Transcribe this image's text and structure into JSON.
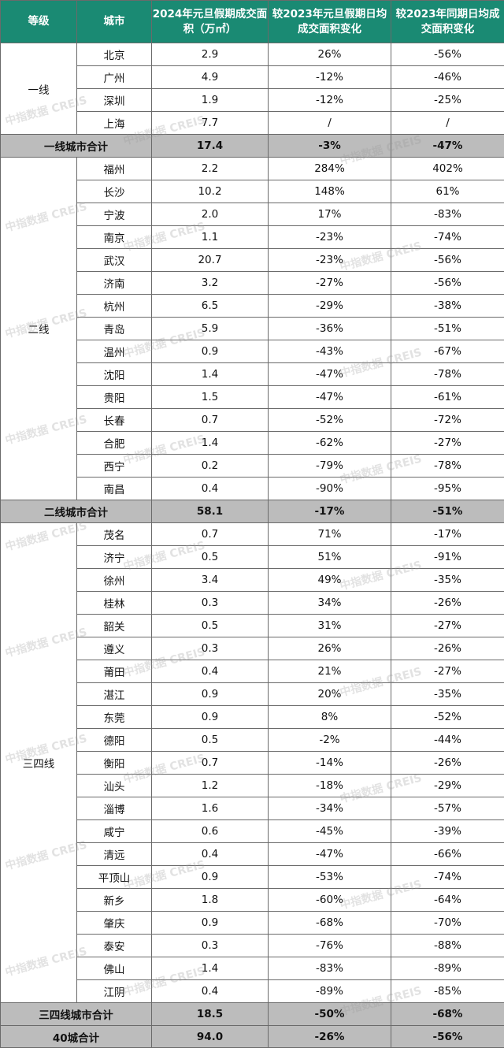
{
  "headers": [
    "等级",
    "城市",
    "2024年元旦假期成交面积（万㎡）",
    "较2023年元旦假期日均成交面积变化",
    "较2023年同期日均成交面积变化"
  ],
  "watermark": "中指数据 CREIS",
  "groups": [
    {
      "tier": "一线",
      "rows": [
        [
          "北京",
          "2.9",
          "26%",
          "-56%"
        ],
        [
          "广州",
          "4.9",
          "-12%",
          "-46%"
        ],
        [
          "深圳",
          "1.9",
          "-12%",
          "-25%"
        ],
        [
          "上海",
          "7.7",
          "/",
          "/"
        ]
      ],
      "subtotal": [
        "一线城市合计",
        "17.4",
        "-3%",
        "-47%"
      ]
    },
    {
      "tier": "二线",
      "rows": [
        [
          "福州",
          "2.2",
          "284%",
          "402%"
        ],
        [
          "长沙",
          "10.2",
          "148%",
          "61%"
        ],
        [
          "宁波",
          "2.0",
          "17%",
          "-83%"
        ],
        [
          "南京",
          "1.1",
          "-23%",
          "-74%"
        ],
        [
          "武汉",
          "20.7",
          "-23%",
          "-56%"
        ],
        [
          "济南",
          "3.2",
          "-27%",
          "-56%"
        ],
        [
          "杭州",
          "6.5",
          "-29%",
          "-38%"
        ],
        [
          "青岛",
          "5.9",
          "-36%",
          "-51%"
        ],
        [
          "温州",
          "0.9",
          "-43%",
          "-67%"
        ],
        [
          "沈阳",
          "1.4",
          "-47%",
          "-78%"
        ],
        [
          "贵阳",
          "1.5",
          "-47%",
          "-61%"
        ],
        [
          "长春",
          "0.7",
          "-52%",
          "-72%"
        ],
        [
          "合肥",
          "1.4",
          "-62%",
          "-27%"
        ],
        [
          "西宁",
          "0.2",
          "-79%",
          "-78%"
        ],
        [
          "南昌",
          "0.4",
          "-90%",
          "-95%"
        ]
      ],
      "subtotal": [
        "二线城市合计",
        "58.1",
        "-17%",
        "-51%"
      ]
    },
    {
      "tier": "三四线",
      "rows": [
        [
          "茂名",
          "0.7",
          "71%",
          "-17%"
        ],
        [
          "济宁",
          "0.5",
          "51%",
          "-91%"
        ],
        [
          "徐州",
          "3.4",
          "49%",
          "-35%"
        ],
        [
          "桂林",
          "0.3",
          "34%",
          "-26%"
        ],
        [
          "韶关",
          "0.5",
          "31%",
          "-27%"
        ],
        [
          "遵义",
          "0.3",
          "26%",
          "-26%"
        ],
        [
          "莆田",
          "0.4",
          "21%",
          "-27%"
        ],
        [
          "湛江",
          "0.9",
          "20%",
          "-35%"
        ],
        [
          "东莞",
          "0.9",
          "8%",
          "-52%"
        ],
        [
          "德阳",
          "0.5",
          "-2%",
          "-44%"
        ],
        [
          "衡阳",
          "0.7",
          "-14%",
          "-26%"
        ],
        [
          "汕头",
          "1.2",
          "-18%",
          "-29%"
        ],
        [
          "淄博",
          "1.6",
          "-34%",
          "-57%"
        ],
        [
          "咸宁",
          "0.6",
          "-45%",
          "-39%"
        ],
        [
          "清远",
          "0.4",
          "-47%",
          "-66%"
        ],
        [
          "平顶山",
          "0.9",
          "-53%",
          "-74%"
        ],
        [
          "新乡",
          "1.8",
          "-60%",
          "-64%"
        ],
        [
          "肇庆",
          "0.9",
          "-68%",
          "-70%"
        ],
        [
          "泰安",
          "0.3",
          "-76%",
          "-88%"
        ],
        [
          "佛山",
          "1.4",
          "-83%",
          "-89%"
        ],
        [
          "江阴",
          "0.4",
          "-89%",
          "-85%"
        ]
      ],
      "subtotal": [
        "三四线城市合计",
        "18.5",
        "-50%",
        "-68%"
      ]
    }
  ],
  "total": [
    "40城合计",
    "94.0",
    "-26%",
    "-56%"
  ]
}
